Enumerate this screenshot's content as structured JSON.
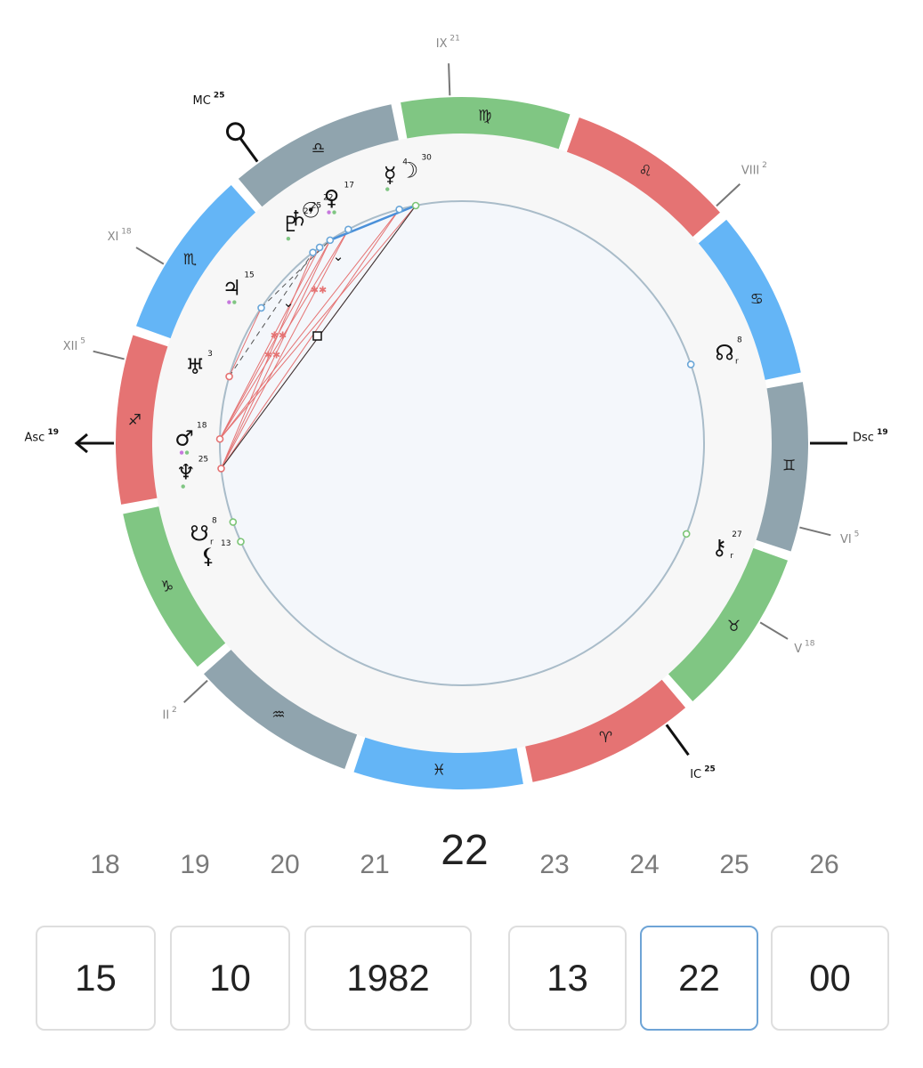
{
  "colors": {
    "fire": "#e57373",
    "earth": "#80c683",
    "air": "#90a4ae",
    "water": "#64b5f6",
    "house_line": "#bdbdbd",
    "inner_fill": "#f4f7fb",
    "aspect_red": "#e57373",
    "aspect_blue": "#4a90d9",
    "aspect_black": "#333333"
  },
  "signs": [
    {
      "name": "Aries",
      "glyph": "♈",
      "element": "fire"
    },
    {
      "name": "Taurus",
      "glyph": "♉",
      "element": "earth"
    },
    {
      "name": "Gemini",
      "glyph": "♊",
      "element": "air"
    },
    {
      "name": "Cancer",
      "glyph": "♋",
      "element": "water"
    },
    {
      "name": "Leo",
      "glyph": "♌",
      "element": "fire"
    },
    {
      "name": "Virgo",
      "glyph": "♍",
      "element": "earth"
    },
    {
      "name": "Libra",
      "glyph": "♎",
      "element": "air"
    },
    {
      "name": "Scorpio",
      "glyph": "♏",
      "element": "water"
    },
    {
      "name": "Sagittarius",
      "glyph": "♐",
      "element": "fire"
    },
    {
      "name": "Capricorn",
      "glyph": "♑",
      "element": "earth"
    },
    {
      "name": "Aquarius",
      "glyph": "♒",
      "element": "air"
    },
    {
      "name": "Pisces",
      "glyph": "♓",
      "element": "water"
    }
  ],
  "axis_labels": [
    {
      "name": "asc",
      "label": "Asc",
      "degree": "19",
      "lon": 259
    },
    {
      "name": "dsc",
      "label": "Dsc",
      "degree": "19",
      "lon": 79
    },
    {
      "name": "mc",
      "label": "MC",
      "degree": "25",
      "lon": 205
    },
    {
      "name": "ic",
      "label": "IC",
      "degree": "25",
      "lon": 25
    }
  ],
  "house_labels": [
    {
      "name": "house-ix",
      "label": "IX",
      "degree": "21",
      "lon": 171
    },
    {
      "name": "house-viii",
      "label": "VIII",
      "degree": "2",
      "lon": 122
    },
    {
      "name": "house-xi",
      "label": "XI",
      "degree": "18",
      "lon": 228
    },
    {
      "name": "house-xii",
      "label": "XII",
      "degree": "5",
      "lon": 245
    },
    {
      "name": "house-ii",
      "label": "II",
      "degree": "2",
      "lon": 302
    },
    {
      "name": "house-vi",
      "label": "VI",
      "degree": "5",
      "lon": 65
    },
    {
      "name": "house-v",
      "label": "V",
      "degree": "18",
      "lon": 48
    }
  ],
  "planets": [
    {
      "name": "moon",
      "glyph": "☽",
      "degree": "30",
      "lon": 180,
      "retro": "",
      "dots": []
    },
    {
      "name": "mercury",
      "glyph": "☿",
      "degree": "4",
      "lon": 184,
      "retro": "",
      "dots": [
        "earth"
      ]
    },
    {
      "name": "venus",
      "glyph": "♀",
      "degree": "17",
      "lon": 197,
      "retro": "",
      "dots": [
        "#c678dd",
        "earth"
      ]
    },
    {
      "name": "sun",
      "glyph": "☉",
      "degree": "22",
      "lon": 202,
      "retro": "",
      "dots": []
    },
    {
      "name": "saturn",
      "glyph": "♄",
      "degree": "25",
      "lon": 205,
      "retro": "",
      "dots": []
    },
    {
      "name": "pluto",
      "glyph": "♇",
      "degree": "27",
      "lon": 207,
      "retro": "",
      "dots": [
        "earth"
      ]
    },
    {
      "name": "jupiter",
      "glyph": "♃",
      "degree": "15",
      "lon": 225,
      "retro": "",
      "dots": [
        "#c678dd",
        "earth"
      ]
    },
    {
      "name": "uranus",
      "glyph": "♅",
      "degree": "3",
      "lon": 243,
      "retro": "",
      "dots": []
    },
    {
      "name": "mars",
      "glyph": "♂",
      "degree": "18",
      "lon": 258,
      "retro": "",
      "dots": [
        "#c678dd",
        "earth"
      ]
    },
    {
      "name": "neptune",
      "glyph": "♆",
      "degree": "25",
      "lon": 265,
      "retro": "",
      "dots": [
        "earth"
      ]
    },
    {
      "name": "south-node",
      "glyph": "☋",
      "degree": "8",
      "lon": 278,
      "retro": "r",
      "dots": []
    },
    {
      "name": "lilith",
      "glyph": "⚸",
      "degree": "13",
      "lon": 283,
      "retro": "",
      "dots": []
    },
    {
      "name": "north-node",
      "glyph": "☊",
      "degree": "8",
      "lon": 98,
      "retro": "r",
      "dots": []
    },
    {
      "name": "chiron",
      "glyph": "⚷",
      "degree": "27",
      "lon": 57,
      "retro": "r",
      "dots": []
    }
  ],
  "scroller": {
    "values": [
      "18",
      "19",
      "20",
      "21",
      "22",
      "23",
      "24",
      "25",
      "26"
    ],
    "selected": "22"
  },
  "date_time": {
    "day": "15",
    "month": "10",
    "year": "1982",
    "hour": "13",
    "minute": "22",
    "second": "00"
  }
}
